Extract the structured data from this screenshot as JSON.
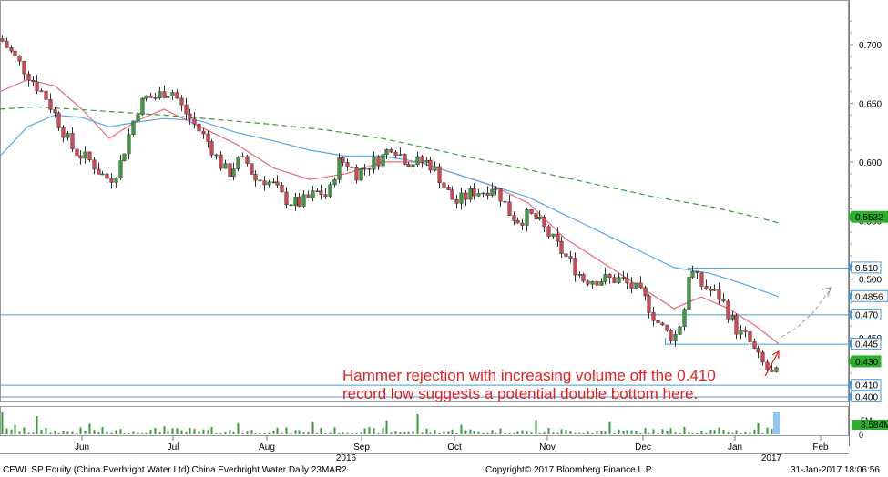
{
  "chart_data": {
    "type": "candlestick",
    "title": "",
    "ylim": [
      0.395,
      0.735
    ],
    "y_ticks": [
      "0.700",
      "0.650",
      "0.600",
      "0.550",
      "0.500",
      "0.450",
      "0.400"
    ],
    "x_months": [
      "Jun",
      "Jul",
      "Aug",
      "Sep",
      "Oct",
      "Nov",
      "Dec",
      "Jan",
      "Feb"
    ],
    "x_years": [
      "2016",
      "2017"
    ],
    "price_series": {
      "name": "CEWL SP Equity",
      "start": 0.71,
      "end": 0.41,
      "points": [
        [
          0,
          0.705
        ],
        [
          10,
          0.695
        ],
        [
          20,
          0.685
        ],
        [
          30,
          0.675
        ],
        [
          40,
          0.665
        ],
        [
          50,
          0.655
        ],
        [
          60,
          0.64
        ],
        [
          70,
          0.625
        ],
        [
          80,
          0.61
        ],
        [
          90,
          0.605
        ],
        [
          100,
          0.6
        ],
        [
          110,
          0.59
        ],
        [
          120,
          0.585
        ],
        [
          130,
          0.595
        ],
        [
          140,
          0.62
        ],
        [
          150,
          0.645
        ],
        [
          160,
          0.655
        ],
        [
          170,
          0.655
        ],
        [
          180,
          0.66
        ],
        [
          190,
          0.66
        ],
        [
          200,
          0.645
        ],
        [
          210,
          0.635
        ],
        [
          220,
          0.625
        ],
        [
          230,
          0.615
        ],
        [
          240,
          0.6
        ],
        [
          250,
          0.59
        ],
        [
          260,
          0.6
        ],
        [
          270,
          0.6
        ],
        [
          280,
          0.585
        ],
        [
          290,
          0.585
        ],
        [
          300,
          0.58
        ],
        [
          310,
          0.57
        ],
        [
          320,
          0.565
        ],
        [
          330,
          0.565
        ],
        [
          340,
          0.57
        ],
        [
          350,
          0.575
        ],
        [
          360,
          0.57
        ],
        [
          370,
          0.6
        ],
        [
          380,
          0.6
        ],
        [
          390,
          0.59
        ],
        [
          400,
          0.595
        ],
        [
          410,
          0.6
        ],
        [
          420,
          0.605
        ],
        [
          430,
          0.615
        ],
        [
          440,
          0.605
        ],
        [
          450,
          0.6
        ],
        [
          460,
          0.6
        ],
        [
          470,
          0.6
        ],
        [
          480,
          0.59
        ],
        [
          490,
          0.575
        ],
        [
          500,
          0.565
        ],
        [
          510,
          0.57
        ],
        [
          520,
          0.575
        ],
        [
          530,
          0.575
        ],
        [
          540,
          0.58
        ],
        [
          550,
          0.57
        ],
        [
          560,
          0.555
        ],
        [
          570,
          0.55
        ],
        [
          580,
          0.555
        ],
        [
          590,
          0.55
        ],
        [
          600,
          0.54
        ],
        [
          610,
          0.53
        ],
        [
          620,
          0.52
        ],
        [
          630,
          0.51
        ],
        [
          640,
          0.5
        ],
        [
          650,
          0.5
        ],
        [
          660,
          0.5
        ],
        [
          670,
          0.5
        ],
        [
          680,
          0.5
        ],
        [
          690,
          0.495
        ],
        [
          700,
          0.49
        ],
        [
          710,
          0.48
        ],
        [
          720,
          0.465
        ],
        [
          730,
          0.455
        ],
        [
          740,
          0.45
        ],
        [
          750,
          0.47
        ],
        [
          755,
          0.505
        ],
        [
          760,
          0.505
        ],
        [
          770,
          0.495
        ],
        [
          780,
          0.49
        ],
        [
          790,
          0.485
        ],
        [
          800,
          0.47
        ],
        [
          810,
          0.455
        ],
        [
          820,
          0.45
        ],
        [
          830,
          0.435
        ],
        [
          840,
          0.425
        ],
        [
          850,
          0.415
        ],
        [
          856,
          0.43
        ]
      ]
    },
    "moving_averages": [
      {
        "color": "#e86a78",
        "style": "solid",
        "points": [
          [
            0,
            0.66
          ],
          [
            30,
            0.67
          ],
          [
            60,
            0.665
          ],
          [
            90,
            0.645
          ],
          [
            120,
            0.62
          ],
          [
            150,
            0.635
          ],
          [
            180,
            0.645
          ],
          [
            220,
            0.63
          ],
          [
            260,
            0.615
          ],
          [
            300,
            0.595
          ],
          [
            340,
            0.585
          ],
          [
            380,
            0.59
          ],
          [
            420,
            0.6
          ],
          [
            460,
            0.6
          ],
          [
            500,
            0.59
          ],
          [
            540,
            0.58
          ],
          [
            580,
            0.565
          ],
          [
            620,
            0.535
          ],
          [
            660,
            0.515
          ],
          [
            700,
            0.495
          ],
          [
            740,
            0.475
          ],
          [
            770,
            0.485
          ],
          [
            800,
            0.475
          ],
          [
            830,
            0.46
          ],
          [
            855,
            0.445
          ]
        ]
      },
      {
        "color": "#5aa6e6",
        "style": "solid",
        "points": [
          [
            0,
            0.605
          ],
          [
            30,
            0.63
          ],
          [
            60,
            0.64
          ],
          [
            90,
            0.638
          ],
          [
            120,
            0.63
          ],
          [
            150,
            0.634
          ],
          [
            180,
            0.637
          ],
          [
            220,
            0.635
          ],
          [
            260,
            0.625
          ],
          [
            300,
            0.618
          ],
          [
            340,
            0.61
          ],
          [
            380,
            0.605
          ],
          [
            420,
            0.605
          ],
          [
            460,
            0.6
          ],
          [
            500,
            0.59
          ],
          [
            540,
            0.58
          ],
          [
            580,
            0.57
          ],
          [
            620,
            0.555
          ],
          [
            660,
            0.54
          ],
          [
            700,
            0.525
          ],
          [
            740,
            0.51
          ],
          [
            780,
            0.505
          ],
          [
            820,
            0.495
          ],
          [
            855,
            0.485
          ]
        ]
      },
      {
        "color": "#3c9a3c",
        "style": "dashed",
        "points": [
          [
            0,
            0.645
          ],
          [
            40,
            0.647
          ],
          [
            80,
            0.645
          ],
          [
            120,
            0.643
          ],
          [
            180,
            0.64
          ],
          [
            240,
            0.636
          ],
          [
            300,
            0.632
          ],
          [
            360,
            0.627
          ],
          [
            420,
            0.62
          ],
          [
            480,
            0.61
          ],
          [
            540,
            0.6
          ],
          [
            600,
            0.59
          ],
          [
            660,
            0.58
          ],
          [
            720,
            0.57
          ],
          [
            780,
            0.562
          ],
          [
            830,
            0.553
          ],
          [
            855,
            0.548
          ]
        ]
      }
    ],
    "horizontal_lines": [
      {
        "value": 0.51,
        "color": "#4a9ad8"
      },
      {
        "value": 0.47,
        "color": "#4a9ad8"
      },
      {
        "value": 0.445,
        "color": "#4a9ad8"
      },
      {
        "value": 0.41,
        "color": "#4a9ad8"
      },
      {
        "value": 0.4,
        "color": "#4a9ad8"
      }
    ],
    "price_labels": [
      {
        "text": "0.5532",
        "value": 0.5532,
        "bg": "#2fae2f",
        "fg": "#000000"
      },
      {
        "text": "0.510",
        "value": 0.51,
        "bg": "#ffffff",
        "fg": "#000000",
        "border": "#4a9ad8"
      },
      {
        "text": "0.4856",
        "value": 0.4856,
        "bg": "#ffffff",
        "fg": "#000000",
        "border": "#4a9ad8"
      },
      {
        "text": "0.470",
        "value": 0.47,
        "bg": "#ffffff",
        "fg": "#000000",
        "border": "#4a9ad8"
      },
      {
        "text": "0.445",
        "value": 0.445,
        "bg": "#ffffff",
        "fg": "#000000",
        "border": "#4a9ad8"
      },
      {
        "text": "0.430",
        "value": 0.43,
        "bg": "#2fae2f",
        "fg": "#000000"
      },
      {
        "text": "0.410",
        "value": 0.41,
        "bg": "#ffffff",
        "fg": "#000000",
        "border": "#4a9ad8"
      },
      {
        "text": "0.400",
        "value": 0.4,
        "bg": "#ffffff",
        "fg": "#000000",
        "border": "#4a9ad8"
      }
    ],
    "volume": {
      "label": "3.584M",
      "label_bg": "#2fae2f",
      "tick_labels": [
        "5M",
        "0"
      ],
      "bar_color": "#3c9a3c",
      "last_bar_color": "#8cc8f0"
    },
    "up_color": "#3c9a3c",
    "down_color": "#d9434f"
  },
  "annotation": {
    "line1": "Hammer rejection with increasing volume off the 0.410",
    "line2": "record low suggests a potential double bottom here.",
    "color": "#e32020"
  },
  "footer": {
    "left": "CEWL SP Equity (China Everbright Water Ltd) China Everbright Water  Daily 23MAR2",
    "center": "Copyright© 2017 Bloomberg Finance L.P.",
    "right": "31-Jan-2017 18:06:56"
  }
}
